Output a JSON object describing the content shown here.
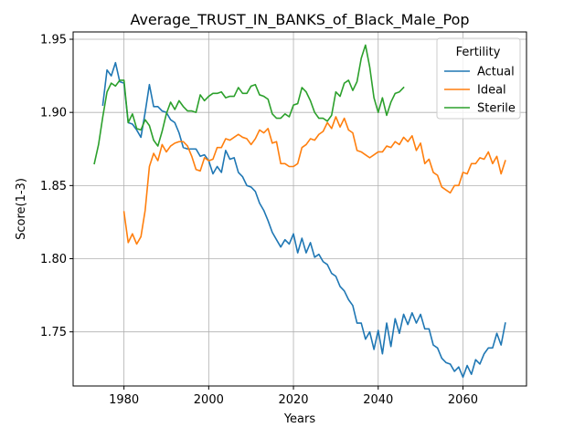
{
  "chart_data": {
    "type": "line",
    "title": "Average_TRUST_IN_BANKS_of_Black_Male_Pop",
    "xlabel": "Years",
    "ylabel": "Score(1-3)",
    "xlim": [
      1968,
      2075
    ],
    "ylim": [
      1.713,
      1.955
    ],
    "xticks": [
      1980,
      2000,
      2020,
      2040,
      2060
    ],
    "yticks": [
      1.75,
      1.8,
      1.85,
      1.9,
      1.95
    ],
    "ytick_labels": [
      "1.75",
      "1.80",
      "1.85",
      "1.90",
      "1.95"
    ],
    "grid": true,
    "legend": {
      "title": "Fertility",
      "position": "top-right"
    },
    "series": [
      {
        "name": "Actual",
        "color": "#1f77b4",
        "x": [
          1975,
          1976,
          1977,
          1978,
          1979,
          1980,
          1981,
          1982,
          1983,
          1984,
          1985,
          1986,
          1987,
          1988,
          1989,
          1990,
          1991,
          1992,
          1993,
          1994,
          1995,
          1996,
          1997,
          1998,
          1999,
          2000,
          2001,
          2002,
          2003,
          2004,
          2005,
          2006,
          2007,
          2008,
          2009,
          2010,
          2011,
          2012,
          2013,
          2014,
          2015,
          2016,
          2017,
          2018,
          2019,
          2020,
          2021,
          2022,
          2023,
          2024,
          2025,
          2026,
          2027,
          2028,
          2029,
          2030,
          2031,
          2032,
          2033,
          2034,
          2035,
          2036,
          2037,
          2038,
          2039,
          2040,
          2041,
          2042,
          2043,
          2044,
          2045,
          2046,
          2047,
          2048,
          2049,
          2050,
          2051,
          2052,
          2053,
          2054,
          2055,
          2056,
          2057,
          2058,
          2059,
          2060,
          2061,
          2062,
          2063,
          2064,
          2065,
          2066,
          2067,
          2068,
          2069,
          2070
        ],
        "values": [
          1.905,
          1.929,
          1.925,
          1.934,
          1.921,
          1.92,
          1.893,
          1.892,
          1.888,
          1.883,
          1.9,
          1.919,
          1.904,
          1.904,
          1.901,
          1.9,
          1.895,
          1.893,
          1.886,
          1.876,
          1.875,
          1.875,
          1.875,
          1.87,
          1.871,
          1.867,
          1.858,
          1.863,
          1.859,
          1.874,
          1.868,
          1.869,
          1.859,
          1.856,
          1.85,
          1.849,
          1.846,
          1.838,
          1.833,
          1.826,
          1.818,
          1.813,
          1.808,
          1.813,
          1.81,
          1.817,
          1.804,
          1.814,
          1.804,
          1.811,
          1.801,
          1.803,
          1.798,
          1.796,
          1.79,
          1.788,
          1.781,
          1.778,
          1.772,
          1.768,
          1.756,
          1.756,
          1.745,
          1.75,
          1.738,
          1.751,
          1.735,
          1.756,
          1.74,
          1.759,
          1.749,
          1.762,
          1.755,
          1.763,
          1.756,
          1.762,
          1.752,
          1.752,
          1.741,
          1.739,
          1.732,
          1.729,
          1.728,
          1.723,
          1.726,
          1.719,
          1.727,
          1.721,
          1.731,
          1.728,
          1.735,
          1.739,
          1.739,
          1.749,
          1.741,
          1.756
        ]
      },
      {
        "name": "Ideal",
        "color": "#ff7f0e",
        "x": [
          1980,
          1981,
          1982,
          1983,
          1984,
          1985,
          1986,
          1987,
          1988,
          1989,
          1990,
          1991,
          1992,
          1993,
          1994,
          1995,
          1996,
          1997,
          1998,
          1999,
          2000,
          2001,
          2002,
          2003,
          2004,
          2005,
          2006,
          2007,
          2008,
          2009,
          2010,
          2011,
          2012,
          2013,
          2014,
          2015,
          2016,
          2017,
          2018,
          2019,
          2020,
          2021,
          2022,
          2023,
          2024,
          2025,
          2026,
          2027,
          2028,
          2029,
          2030,
          2031,
          2032,
          2033,
          2034,
          2035,
          2036,
          2037,
          2038,
          2039,
          2040,
          2041,
          2042,
          2043,
          2044,
          2045,
          2046,
          2047,
          2048,
          2049,
          2050,
          2051,
          2052,
          2053,
          2054,
          2055,
          2056,
          2057,
          2058,
          2059,
          2060,
          2061,
          2062,
          2063,
          2064,
          2065,
          2066,
          2067,
          2068,
          2069,
          2070
        ],
        "values": [
          1.832,
          1.811,
          1.817,
          1.81,
          1.815,
          1.833,
          1.863,
          1.872,
          1.867,
          1.878,
          1.873,
          1.877,
          1.879,
          1.88,
          1.88,
          1.877,
          1.87,
          1.861,
          1.86,
          1.869,
          1.867,
          1.868,
          1.876,
          1.876,
          1.882,
          1.881,
          1.883,
          1.885,
          1.883,
          1.882,
          1.878,
          1.882,
          1.888,
          1.886,
          1.889,
          1.879,
          1.88,
          1.865,
          1.865,
          1.863,
          1.863,
          1.865,
          1.876,
          1.878,
          1.882,
          1.881,
          1.885,
          1.887,
          1.893,
          1.889,
          1.897,
          1.89,
          1.896,
          1.888,
          1.886,
          1.874,
          1.873,
          1.871,
          1.869,
          1.871,
          1.873,
          1.873,
          1.877,
          1.876,
          1.88,
          1.878,
          1.883,
          1.88,
          1.884,
          1.874,
          1.879,
          1.865,
          1.868,
          1.859,
          1.857,
          1.849,
          1.847,
          1.845,
          1.85,
          1.85,
          1.859,
          1.858,
          1.865,
          1.865,
          1.869,
          1.868,
          1.873,
          1.865,
          1.87,
          1.858,
          1.867
        ]
      },
      {
        "name": "Sterile",
        "color": "#2ca02c",
        "x": [
          1973,
          1974,
          1975,
          1976,
          1977,
          1978,
          1979,
          1980,
          1981,
          1982,
          1983,
          1984,
          1985,
          1986,
          1987,
          1988,
          1989,
          1990,
          1991,
          1992,
          1993,
          1994,
          1995,
          1996,
          1997,
          1998,
          1999,
          2000,
          2001,
          2002,
          2003,
          2004,
          2005,
          2006,
          2007,
          2008,
          2009,
          2010,
          2011,
          2012,
          2013,
          2014,
          2015,
          2016,
          2017,
          2018,
          2019,
          2020,
          2021,
          2022,
          2023,
          2024,
          2025,
          2026,
          2027,
          2028,
          2029,
          2030,
          2031,
          2032,
          2033,
          2034,
          2035,
          2036,
          2037,
          2038,
          2039,
          2040,
          2041,
          2042,
          2043,
          2044,
          2045,
          2046
        ],
        "values": [
          1.865,
          1.878,
          1.897,
          1.914,
          1.92,
          1.918,
          1.922,
          1.922,
          1.893,
          1.899,
          1.889,
          1.888,
          1.895,
          1.891,
          1.881,
          1.877,
          1.887,
          1.899,
          1.907,
          1.902,
          1.908,
          1.904,
          1.901,
          1.901,
          1.9,
          1.912,
          1.908,
          1.911,
          1.913,
          1.913,
          1.914,
          1.91,
          1.911,
          1.911,
          1.917,
          1.913,
          1.913,
          1.918,
          1.919,
          1.912,
          1.911,
          1.909,
          1.899,
          1.896,
          1.896,
          1.899,
          1.897,
          1.905,
          1.906,
          1.917,
          1.914,
          1.908,
          1.9,
          1.896,
          1.896,
          1.894,
          1.898,
          1.914,
          1.911,
          1.92,
          1.922,
          1.915,
          1.921,
          1.937,
          1.946,
          1.931,
          1.91,
          1.9,
          1.91,
          1.898,
          1.907,
          1.913,
          1.914,
          1.917
        ]
      }
    ]
  }
}
